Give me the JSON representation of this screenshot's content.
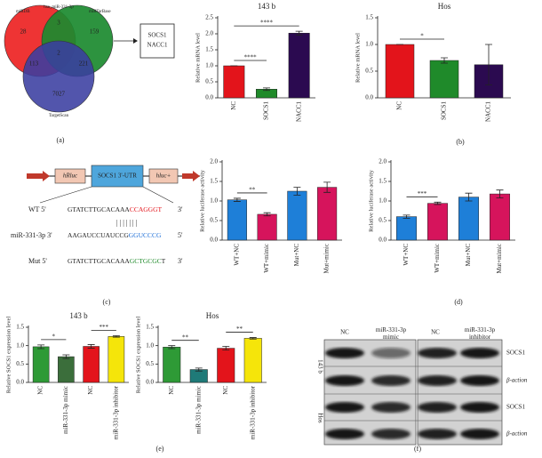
{
  "venn": {
    "sets": [
      "miRDB",
      "hsa_miR-331-3p",
      "miRTarBase",
      "TargetScan"
    ],
    "regions": [
      28,
      3,
      159,
      2,
      113,
      221,
      7027
    ],
    "targets": [
      "SOCS1",
      "NACC1"
    ]
  },
  "construct": [
    "hRluc",
    "SOCS1 3'-UTR",
    "hluc+"
  ],
  "sequences": [
    {
      "label": "WT 5'",
      "parts": [
        "GTATCTTGCACAAA",
        "CCAGGGT"
      ],
      "end": "3'"
    },
    {
      "label": "miR-331-3p 3'",
      "parts": [
        "AAGAUCCUAUCCG",
        "GGUCCCG"
      ],
      "end": "5'"
    },
    {
      "label": "Mut 5'",
      "parts": [
        "GTATCTTGCACAAA",
        "GCTGCGC",
        "T"
      ],
      "end": "3'"
    }
  ],
  "chart_data": [
    {
      "type": "bar",
      "title": "143 b",
      "ylabel": "Relative mRNA level",
      "categories": [
        "NC",
        "SOCS1",
        "NACC1"
      ],
      "values": [
        1.0,
        0.27,
        2.02
      ],
      "errors": [
        0,
        0.04,
        0.06
      ],
      "colors": [
        "#e3141b",
        "#1f8a2a",
        "#2b0a50"
      ],
      "ylim": [
        0,
        2.5
      ],
      "yticks": [
        {
          "value": 0,
          "label": "0.0"
        },
        {
          "value": 0.5,
          "label": "0.5"
        },
        {
          "value": 1,
          "label": "1.0"
        },
        {
          "value": 1.5,
          "label": "1.5"
        },
        {
          "value": 2,
          "label": "2.0"
        },
        {
          "value": 2.5,
          "label": "2.5"
        }
      ],
      "significance": [
        {
          "label": "****",
          "bars": [
            0,
            1
          ]
        },
        {
          "label": "****",
          "bars": [
            0,
            2
          ]
        }
      ]
    },
    {
      "type": "bar",
      "title": "Hos",
      "ylabel": "Relative mRNA level",
      "categories": [
        "NC",
        "SOCS1",
        "NACC1"
      ],
      "values": [
        1.0,
        0.7,
        0.62
      ],
      "errors": [
        0,
        0.05,
        0.38
      ],
      "colors": [
        "#e3141b",
        "#1f8a2a",
        "#2b0a50"
      ],
      "ylim": [
        0,
        1.5
      ],
      "yticks": [
        {
          "value": 0,
          "label": "0.0"
        },
        {
          "value": 0.5,
          "label": "0.5"
        },
        {
          "value": 1,
          "label": "1.0"
        },
        {
          "value": 1.5,
          "label": "1.5"
        }
      ],
      "significance": [
        {
          "label": "*",
          "bars": [
            0,
            1
          ]
        }
      ]
    },
    {
      "type": "bar",
      "ylabel": "Relative luciferase activity",
      "categories": [
        "WT+NC",
        "WT+mimic",
        "Mut+NC",
        "Mut+mimic"
      ],
      "values": [
        1.03,
        0.66,
        1.25,
        1.35
      ],
      "errors": [
        0.04,
        0.04,
        0.1,
        0.13
      ],
      "colors": [
        "#1e7fd8",
        "#d6145c",
        "#1e7fd8",
        "#d6145c"
      ],
      "ylim": [
        0,
        2.0
      ],
      "yticks": [
        {
          "value": 0,
          "label": "0.0"
        },
        {
          "value": 0.5,
          "label": "0.5"
        },
        {
          "value": 1,
          "label": "1.0"
        },
        {
          "value": 1.5,
          "label": "1.5"
        },
        {
          "value": 2,
          "label": "2.0"
        }
      ],
      "significance": [
        {
          "label": "**",
          "bars": [
            0,
            1
          ]
        }
      ]
    },
    {
      "type": "bar",
      "ylabel": "Relative luciferase activity",
      "categories": [
        "WT+NC",
        "WT+mimic",
        "Mut+NC",
        "Mut+mimic"
      ],
      "values": [
        0.6,
        0.94,
        1.1,
        1.18
      ],
      "errors": [
        0.04,
        0.03,
        0.1,
        0.1
      ],
      "colors": [
        "#1e7fd8",
        "#d6145c",
        "#1e7fd8",
        "#d6145c"
      ],
      "ylim": [
        0,
        2.0
      ],
      "yticks": [
        {
          "value": 0,
          "label": "0.0"
        },
        {
          "value": 0.5,
          "label": "0.5"
        },
        {
          "value": 1,
          "label": "1.0"
        },
        {
          "value": 1.5,
          "label": "1.5"
        },
        {
          "value": 2,
          "label": "2.0"
        }
      ],
      "significance": [
        {
          "label": "***",
          "bars": [
            0,
            1
          ]
        }
      ]
    },
    {
      "type": "bar",
      "title": "143 b",
      "ylabel": "Relative SOCS1 expression level",
      "categories": [
        "NC",
        "miR-331-3p mimic",
        "NC",
        "miR-331-3p inhibitor"
      ],
      "values": [
        0.97,
        0.7,
        0.98,
        1.25
      ],
      "errors": [
        0.05,
        0.05,
        0.05,
        0.02
      ],
      "colors": [
        "#2e9a36",
        "#3b6e3b",
        "#e3141b",
        "#f5e50a"
      ],
      "ylim": [
        0,
        1.5
      ],
      "yticks": [
        {
          "value": 0,
          "label": "0.0"
        },
        {
          "value": 0.5,
          "label": "0.5"
        },
        {
          "value": 1,
          "label": "1.0"
        },
        {
          "value": 1.5,
          "label": "1.5"
        }
      ],
      "significance": [
        {
          "label": "*",
          "bars": [
            0,
            1
          ]
        },
        {
          "label": "***",
          "bars": [
            2,
            3
          ]
        }
      ]
    },
    {
      "type": "bar",
      "title": "Hos",
      "ylabel": "Relative SOCS1 expression level",
      "categories": [
        "NC",
        "miR-331-3p mimic",
        "NC",
        "miR-331-3p inhibitor"
      ],
      "values": [
        0.96,
        0.35,
        0.93,
        1.2
      ],
      "errors": [
        0.04,
        0.04,
        0.05,
        0.02
      ],
      "colors": [
        "#2e9a36",
        "#1f7a78",
        "#e3141b",
        "#f5e50a"
      ],
      "ylim": [
        0,
        1.5
      ],
      "yticks": [
        {
          "value": 0,
          "label": "0.0"
        },
        {
          "value": 0.5,
          "label": "0.5"
        },
        {
          "value": 1,
          "label": "1.0"
        },
        {
          "value": 1.5,
          "label": "1.5"
        }
      ],
      "significance": [
        {
          "label": "**",
          "bars": [
            0,
            1
          ]
        },
        {
          "label": "**",
          "bars": [
            2,
            3
          ]
        }
      ]
    }
  ],
  "blot": {
    "columns": [
      "NC",
      "miR-331-3p mimic",
      "NC",
      "miR-331-3p inhibitor"
    ],
    "rows": [
      "SOCS1",
      "β-action",
      "SOCS1",
      "β-action"
    ],
    "groups": [
      "143 b",
      "Hos"
    ]
  },
  "panel_labels": [
    "(a)",
    "(b)",
    "(c)",
    "(d)",
    "(e)",
    "(f)"
  ]
}
